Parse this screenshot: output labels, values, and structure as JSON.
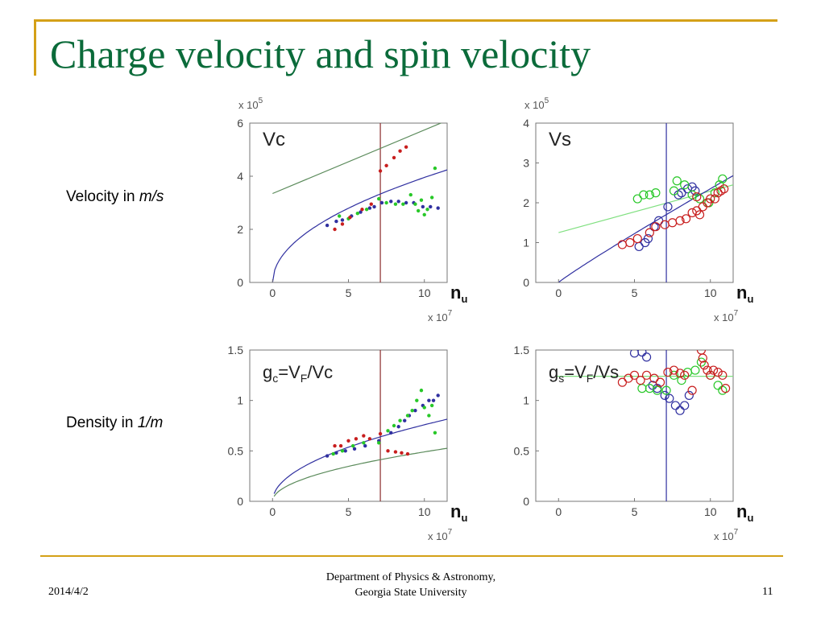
{
  "slide": {
    "title": "Charge velocity and spin velocity",
    "velocity_label_text": "Velocity in ",
    "velocity_label_unit": "m/s",
    "density_label_text": "Density in ",
    "density_label_unit": "1/m",
    "footer_date": "2014/4/2",
    "footer_line1": "Department of Physics & Astronomy,",
    "footer_line2": "Georgia State University",
    "page_number": "11"
  },
  "colors": {
    "title": "#0b6b3a",
    "rule": "#d4a017",
    "blue": "#3030a0",
    "green": "#28c828",
    "red": "#c81e1e",
    "olive": "#5a8a5a",
    "maroon": "#8b2d2d"
  },
  "chart_data": [
    {
      "type": "scatter",
      "title": "Vc",
      "xlabel": "n_u",
      "x_multiplier": "x 10^7",
      "y_multiplier": "x 10^5",
      "xlim": [
        -1.5,
        11.5
      ],
      "ylim": [
        0,
        6
      ],
      "xticks": [
        0,
        5,
        10
      ],
      "yticks": [
        0,
        2,
        4,
        6
      ],
      "vline": 7.1,
      "lines": [
        {
          "name": "olive",
          "points": [
            [
              0,
              3.35
            ],
            [
              11.5,
              6.1
            ]
          ]
        },
        {
          "name": "blue-sqrt",
          "fn": "sqrt",
          "a": 1.25,
          "x0": 0,
          "x1": 11.5
        }
      ],
      "series": [
        {
          "color": "blue",
          "marker": "dot",
          "points": [
            [
              3.6,
              2.15
            ],
            [
              4.2,
              2.3
            ],
            [
              4.6,
              2.35
            ],
            [
              5.2,
              2.5
            ],
            [
              5.8,
              2.65
            ],
            [
              6.4,
              2.8
            ],
            [
              6.7,
              2.85
            ],
            [
              7.2,
              3.0
            ],
            [
              7.8,
              3.05
            ],
            [
              8.3,
              3.05
            ],
            [
              8.8,
              3.0
            ],
            [
              9.3,
              3.0
            ],
            [
              9.9,
              2.85
            ],
            [
              10.4,
              2.85
            ],
            [
              10.9,
              2.8
            ]
          ]
        },
        {
          "color": "green",
          "marker": "dot",
          "points": [
            [
              4.4,
              2.5
            ],
            [
              5.0,
              2.4
            ],
            [
              5.6,
              2.6
            ],
            [
              6.2,
              2.75
            ],
            [
              7.0,
              3.15
            ],
            [
              7.5,
              3.0
            ],
            [
              8.1,
              2.95
            ],
            [
              8.6,
              2.95
            ],
            [
              9.1,
              3.3
            ],
            [
              9.4,
              2.95
            ],
            [
              9.6,
              2.7
            ],
            [
              9.8,
              3.1
            ],
            [
              10.0,
              2.55
            ],
            [
              10.2,
              2.75
            ],
            [
              10.5,
              3.2
            ],
            [
              10.7,
              4.3
            ]
          ]
        },
        {
          "color": "red",
          "marker": "dot",
          "points": [
            [
              4.1,
              2.0
            ],
            [
              4.6,
              2.2
            ],
            [
              5.1,
              2.45
            ],
            [
              5.9,
              2.75
            ],
            [
              6.5,
              2.95
            ],
            [
              7.1,
              4.2
            ],
            [
              7.5,
              4.4
            ],
            [
              8.0,
              4.7
            ],
            [
              8.4,
              4.95
            ],
            [
              8.8,
              5.1
            ]
          ]
        }
      ]
    },
    {
      "type": "scatter",
      "title": "Vs",
      "xlabel": "n_u",
      "x_multiplier": "x 10^7",
      "y_multiplier": "x 10^5",
      "xlim": [
        -1.5,
        11.5
      ],
      "ylim": [
        0,
        4
      ],
      "xticks": [
        0,
        5,
        10
      ],
      "yticks": [
        0,
        1,
        2,
        3,
        4
      ],
      "vline": 7.1,
      "lines": [
        {
          "name": "lightgreen",
          "points": [
            [
              0,
              1.25
            ],
            [
              11.5,
              2.45
            ]
          ]
        },
        {
          "name": "blue-power",
          "fn": "power",
          "a": 0.27,
          "p": 0.94,
          "x0": 0,
          "x1": 11.5
        }
      ],
      "series": [
        {
          "color": "blue",
          "marker": "circle",
          "points": [
            [
              5.3,
              0.9
            ],
            [
              5.7,
              1.0
            ],
            [
              5.9,
              1.1
            ],
            [
              6.3,
              1.4
            ],
            [
              6.6,
              1.55
            ],
            [
              7.2,
              1.9
            ],
            [
              7.9,
              2.2
            ],
            [
              8.1,
              2.25
            ],
            [
              8.5,
              2.35
            ],
            [
              8.8,
              2.4
            ],
            [
              9.0,
              2.3
            ]
          ]
        },
        {
          "color": "green",
          "marker": "circle",
          "points": [
            [
              5.2,
              2.1
            ],
            [
              5.6,
              2.2
            ],
            [
              6.0,
              2.2
            ],
            [
              6.4,
              2.25
            ],
            [
              7.6,
              2.3
            ],
            [
              7.8,
              2.55
            ],
            [
              8.3,
              2.45
            ],
            [
              8.8,
              2.2
            ],
            [
              9.3,
              2.1
            ],
            [
              9.9,
              2.0
            ],
            [
              10.3,
              2.25
            ],
            [
              10.6,
              2.45
            ],
            [
              10.8,
              2.6
            ]
          ]
        },
        {
          "color": "red",
          "marker": "circle",
          "points": [
            [
              4.2,
              0.95
            ],
            [
              4.7,
              1.0
            ],
            [
              5.2,
              1.1
            ],
            [
              6.0,
              1.25
            ],
            [
              6.4,
              1.4
            ],
            [
              7.0,
              1.45
            ],
            [
              7.5,
              1.5
            ],
            [
              8.0,
              1.55
            ],
            [
              8.4,
              1.6
            ],
            [
              8.8,
              1.75
            ],
            [
              9.1,
              1.8
            ],
            [
              9.3,
              1.7
            ],
            [
              9.5,
              1.9
            ],
            [
              9.8,
              2.0
            ],
            [
              10.0,
              2.1
            ],
            [
              10.3,
              2.1
            ],
            [
              10.5,
              2.25
            ],
            [
              10.7,
              2.3
            ],
            [
              10.9,
              2.35
            ],
            [
              9.1,
              2.15
            ]
          ]
        }
      ]
    },
    {
      "type": "scatter",
      "title": "gc=VF/Vc",
      "xlabel": "n_u",
      "x_multiplier": "x 10^7",
      "xlim": [
        -1.5,
        11.5
      ],
      "ylim": [
        0,
        1.5
      ],
      "xticks": [
        0,
        5,
        10
      ],
      "yticks": [
        0,
        0.5,
        1,
        1.5
      ],
      "vline": 7.1,
      "lines": [
        {
          "name": "blue-sqrt",
          "fn": "sqrt",
          "a": 0.24,
          "x0": 0.1,
          "x1": 11.5
        },
        {
          "name": "olive",
          "fn": "sqrt",
          "a": 0.155,
          "x0": 0.1,
          "x1": 11.5
        }
      ],
      "series": [
        {
          "color": "blue",
          "marker": "dot",
          "points": [
            [
              3.6,
              0.45
            ],
            [
              4.2,
              0.48
            ],
            [
              4.8,
              0.5
            ],
            [
              5.4,
              0.52
            ],
            [
              6.1,
              0.55
            ],
            [
              7.0,
              0.6
            ],
            [
              7.8,
              0.68
            ],
            [
              8.3,
              0.74
            ],
            [
              8.7,
              0.8
            ],
            [
              9.0,
              0.85
            ],
            [
              9.4,
              0.9
            ],
            [
              9.9,
              0.95
            ],
            [
              10.3,
              1.0
            ],
            [
              10.6,
              1.0
            ],
            [
              10.9,
              1.05
            ]
          ]
        },
        {
          "color": "green",
          "marker": "dot",
          "points": [
            [
              4.0,
              0.47
            ],
            [
              4.6,
              0.5
            ],
            [
              5.3,
              0.55
            ],
            [
              6.0,
              0.58
            ],
            [
              7.0,
              0.58
            ],
            [
              7.6,
              0.7
            ],
            [
              8.0,
              0.75
            ],
            [
              8.4,
              0.8
            ],
            [
              8.9,
              0.85
            ],
            [
              9.2,
              0.9
            ],
            [
              9.5,
              1.0
            ],
            [
              9.8,
              1.1
            ],
            [
              10.0,
              0.93
            ],
            [
              10.3,
              0.85
            ],
            [
              10.5,
              0.95
            ],
            [
              10.7,
              0.68
            ]
          ]
        },
        {
          "color": "red",
          "marker": "dot",
          "points": [
            [
              4.1,
              0.55
            ],
            [
              4.5,
              0.55
            ],
            [
              5.0,
              0.6
            ],
            [
              5.5,
              0.62
            ],
            [
              6.0,
              0.65
            ],
            [
              6.4,
              0.62
            ],
            [
              7.1,
              0.67
            ],
            [
              7.6,
              0.5
            ],
            [
              8.1,
              0.49
            ],
            [
              8.5,
              0.48
            ],
            [
              8.9,
              0.47
            ]
          ]
        }
      ]
    },
    {
      "type": "scatter",
      "title": "gs=VF/Vs",
      "xlabel": "n_u",
      "x_multiplier": "x 10^7",
      "xlim": [
        -1.5,
        11.5
      ],
      "ylim": [
        0,
        1.5
      ],
      "xticks": [
        0,
        5,
        10
      ],
      "yticks": [
        0,
        0.5,
        1,
        1.5
      ],
      "vline": 7.1,
      "lines": [
        {
          "name": "lightgreen",
          "points": [
            [
              -0.1,
              1.24
            ],
            [
              11.5,
              1.24
            ]
          ]
        }
      ],
      "series": [
        {
          "color": "blue",
          "marker": "circle",
          "points": [
            [
              5.0,
              1.47
            ],
            [
              5.5,
              1.48
            ],
            [
              5.8,
              1.43
            ],
            [
              6.2,
              1.15
            ],
            [
              6.5,
              1.12
            ],
            [
              7.0,
              1.05
            ],
            [
              7.3,
              1.02
            ],
            [
              7.7,
              0.95
            ],
            [
              8.0,
              0.9
            ],
            [
              8.3,
              0.95
            ],
            [
              8.6,
              1.05
            ]
          ]
        },
        {
          "color": "green",
          "marker": "circle",
          "points": [
            [
              5.5,
              1.12
            ],
            [
              6.0,
              1.12
            ],
            [
              6.5,
              1.1
            ],
            [
              7.1,
              1.1
            ],
            [
              7.6,
              1.25
            ],
            [
              8.1,
              1.2
            ],
            [
              8.5,
              1.28
            ],
            [
              9.0,
              1.3
            ],
            [
              9.4,
              1.38
            ],
            [
              10.0,
              1.25
            ],
            [
              10.5,
              1.15
            ],
            [
              10.8,
              1.1
            ]
          ]
        },
        {
          "color": "red",
          "marker": "circle",
          "points": [
            [
              4.2,
              1.18
            ],
            [
              4.6,
              1.22
            ],
            [
              5.0,
              1.25
            ],
            [
              5.4,
              1.2
            ],
            [
              5.8,
              1.25
            ],
            [
              6.3,
              1.22
            ],
            [
              6.7,
              1.18
            ],
            [
              7.2,
              1.28
            ],
            [
              7.6,
              1.3
            ],
            [
              8.0,
              1.27
            ],
            [
              8.3,
              1.25
            ],
            [
              8.8,
              1.1
            ],
            [
              9.2,
              1.55
            ],
            [
              9.4,
              1.5
            ],
            [
              9.5,
              1.42
            ],
            [
              9.6,
              1.35
            ],
            [
              9.8,
              1.3
            ],
            [
              10.0,
              1.25
            ],
            [
              10.2,
              1.3
            ],
            [
              10.5,
              1.28
            ],
            [
              10.8,
              1.25
            ],
            [
              11.0,
              1.12
            ]
          ]
        }
      ]
    }
  ],
  "panels": [
    {
      "title": "Vc",
      "title_sub": "",
      "xlabel_main": "n",
      "xlabel_sub": "u",
      "xmult": "x 10",
      "xmult_exp": "7",
      "ymult": "x 10",
      "ymult_exp": "5",
      "tick_labels_x": [
        "0",
        "5",
        "10"
      ],
      "tick_labels_y": [
        "0",
        "2",
        "4",
        "6"
      ]
    },
    {
      "title": "Vs",
      "title_sub": "",
      "xlabel_main": "n",
      "xlabel_sub": "u",
      "xmult": "x 10",
      "xmult_exp": "7",
      "ymult": "x 10",
      "ymult_exp": "5",
      "tick_labels_x": [
        "0",
        "5",
        "10"
      ],
      "tick_labels_y": [
        "0",
        "1",
        "2",
        "3",
        "4"
      ]
    },
    {
      "title": "g",
      "title_sub": "c",
      "title_rest": "=V",
      "title_sub2": "F",
      "title_tail": "/Vc",
      "xlabel_main": "n",
      "xlabel_sub": "u",
      "xmult": "x 10",
      "xmult_exp": "7",
      "tick_labels_x": [
        "0",
        "5",
        "10"
      ],
      "tick_labels_y": [
        "0",
        "0.5",
        "1",
        "1.5"
      ]
    },
    {
      "title": "g",
      "title_sub": "s",
      "title_rest": "=V",
      "title_sub2": "F",
      "title_tail": "/Vs",
      "xlabel_main": "n",
      "xlabel_sub": "u",
      "xmult": "x 10",
      "xmult_exp": "7",
      "tick_labels_x": [
        "0",
        "5",
        "10"
      ],
      "tick_labels_y": [
        "0",
        "0.5",
        "1",
        "1.5"
      ]
    }
  ]
}
